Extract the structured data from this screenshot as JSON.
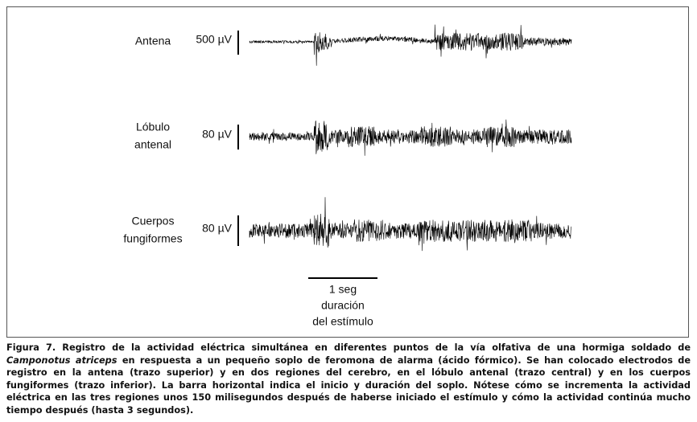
{
  "figure": {
    "traces": [
      {
        "label_lines": [
          "Antena"
        ],
        "scale": "500 µV"
      },
      {
        "label_lines": [
          "Lóbulo",
          "antenal"
        ],
        "scale": "80 µV"
      },
      {
        "label_lines": [
          "Cuerpos",
          "fungiformes"
        ],
        "scale": "80 µV"
      }
    ],
    "stimulus_lines": [
      "1 seg",
      "duración",
      "del estímulo"
    ]
  },
  "caption": {
    "heading": "Figura 7. Registro de la actividad eléctrica simultánea en diferentes puntos de la vía olfativa de una hormiga soldado de ",
    "species": "Camponotus atriceps",
    "body": " en respuesta a  un pequeño soplo de feromona de alarma (ácido fórmico). Se han colocado electrodos de registro en la antena (trazo superior) y en dos regiones del cerebro, en el lóbulo antenal (trazo central) y en los cuerpos fungiformes (trazo inferior). La barra horizontal indica el inicio y duración del soplo. Nótese cómo se incrementa la actividad eléctrica en las tres regiones unos 150 milisegundos después de haberse iniciado el estímulo y cómo la actividad continúa mucho tiempo después (hasta 3  segundos)."
  }
}
